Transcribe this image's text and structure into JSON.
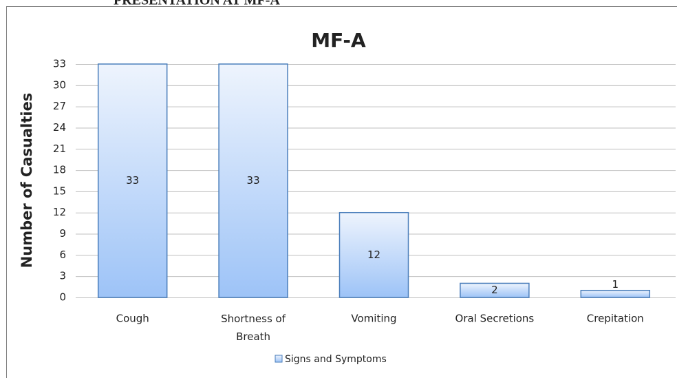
{
  "heading": "PRESENTATION AT MF-A",
  "chart_data": {
    "type": "bar",
    "title": "MF-A",
    "y_label": "Number of Casualties",
    "categories": [
      "Cough",
      "Shortness of Breath",
      "Vomiting",
      "Oral Secretions",
      "Crepitation"
    ],
    "series": [
      {
        "name": "Signs and Symptoms",
        "color": "#9dc3f7",
        "values": [
          33,
          33,
          12,
          2,
          1
        ]
      }
    ],
    "ylim": [
      0,
      33
    ],
    "yticks": [
      0,
      3,
      6,
      9,
      12,
      15,
      18,
      21,
      24,
      27,
      30,
      33
    ],
    "grid": true,
    "legend": "bottom"
  }
}
